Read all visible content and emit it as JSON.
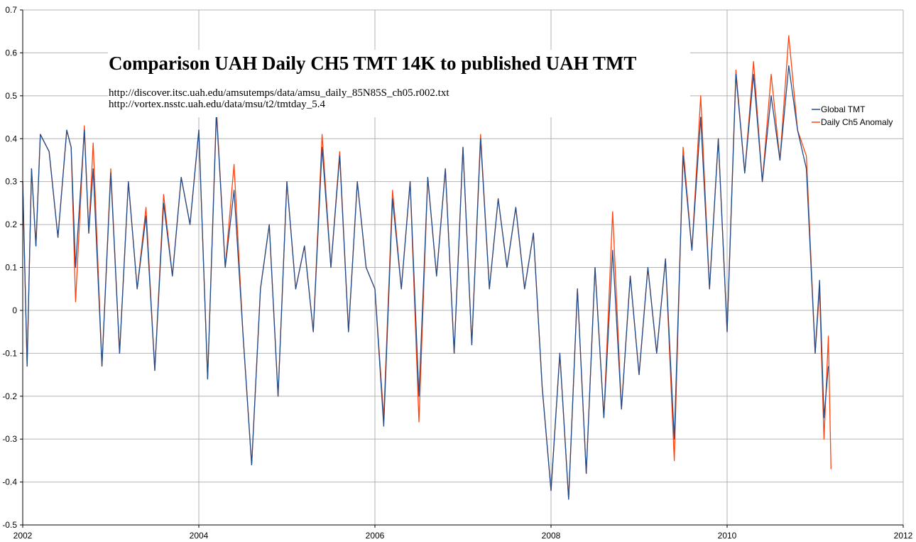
{
  "colors": {
    "global_tmt": "#1f4e8c",
    "daily_ch5": "#ff420e",
    "grid": "#b3b3b3",
    "axis": "#000000"
  },
  "chart_data": {
    "type": "line",
    "title": "Comparison UAH Daily CH5 TMT 14K to published UAH TMT",
    "sources": [
      "http://discover.itsc.uah.edu/amsutemps/data/amsu_daily_85N85S_ch05.r002.txt",
      "http://vortex.nsstc.uah.edu/data/msu/t2/tmtday_5.4"
    ],
    "xlabel": "",
    "ylabel": "",
    "xlim": [
      2002,
      2012
    ],
    "ylim": [
      -0.5,
      0.7
    ],
    "x_ticks": [
      "2002",
      "2004",
      "2006",
      "2008",
      "2010",
      "2012"
    ],
    "y_ticks": [
      "0.7",
      "0.6",
      "0.5",
      "0.4",
      "0.3",
      "0.2",
      "0.1",
      "0",
      "-0.1",
      "-0.2",
      "-0.3",
      "-0.4",
      "-0.5"
    ],
    "grid": true,
    "legend_position": "right",
    "series": [
      {
        "name": "Global TMT",
        "color": "#1f4e8c",
        "x": [
          2002.0,
          2002.05,
          2002.1,
          2002.15,
          2002.2,
          2002.3,
          2002.4,
          2002.5,
          2002.55,
          2002.6,
          2002.7,
          2002.75,
          2002.8,
          2002.9,
          2003.0,
          2003.1,
          2003.2,
          2003.3,
          2003.4,
          2003.5,
          2003.6,
          2003.7,
          2003.8,
          2003.9,
          2004.0,
          2004.1,
          2004.2,
          2004.3,
          2004.4,
          2004.5,
          2004.6,
          2004.7,
          2004.8,
          2004.9,
          2005.0,
          2005.1,
          2005.2,
          2005.3,
          2005.4,
          2005.5,
          2005.6,
          2005.7,
          2005.8,
          2005.9,
          2006.0,
          2006.1,
          2006.2,
          2006.3,
          2006.4,
          2006.5,
          2006.6,
          2006.7,
          2006.8,
          2006.9,
          2007.0,
          2007.1,
          2007.2,
          2007.3,
          2007.4,
          2007.5,
          2007.6,
          2007.7,
          2007.8,
          2007.9,
          2008.0,
          2008.1,
          2008.2,
          2008.3,
          2008.4,
          2008.5,
          2008.6,
          2008.7,
          2008.8,
          2008.9,
          2009.0,
          2009.1,
          2009.2,
          2009.3,
          2009.4,
          2009.5,
          2009.6,
          2009.7,
          2009.8,
          2009.9,
          2010.0,
          2010.1,
          2010.2,
          2010.3,
          2010.4,
          2010.5,
          2010.6,
          2010.7,
          2010.8,
          2010.9,
          2011.0,
          2011.05,
          2011.1,
          2011.15
        ],
        "values": [
          0.3,
          -0.13,
          0.33,
          0.15,
          0.41,
          0.37,
          0.17,
          0.42,
          0.38,
          0.1,
          0.42,
          0.18,
          0.33,
          -0.13,
          0.32,
          -0.1,
          0.3,
          0.05,
          0.22,
          -0.14,
          0.25,
          0.08,
          0.31,
          0.2,
          0.42,
          -0.16,
          0.46,
          0.1,
          0.28,
          -0.05,
          -0.36,
          0.05,
          0.2,
          -0.2,
          0.3,
          0.05,
          0.15,
          -0.05,
          0.38,
          0.1,
          0.36,
          -0.05,
          0.3,
          0.1,
          0.05,
          -0.27,
          0.26,
          0.05,
          0.3,
          -0.2,
          0.31,
          0.08,
          0.33,
          -0.1,
          0.38,
          -0.08,
          0.4,
          0.05,
          0.26,
          0.1,
          0.24,
          0.05,
          0.18,
          -0.18,
          -0.42,
          -0.1,
          -0.44,
          0.05,
          -0.38,
          0.1,
          -0.25,
          0.14,
          -0.23,
          0.08,
          -0.15,
          0.1,
          -0.1,
          0.12,
          -0.3,
          0.36,
          0.14,
          0.45,
          0.05,
          0.4,
          -0.05,
          0.55,
          0.32,
          0.55,
          0.3,
          0.5,
          0.35,
          0.57,
          0.42,
          0.33,
          -0.1,
          0.07,
          -0.25,
          -0.13
        ]
      },
      {
        "name": "Daily Ch5 Anomaly",
        "color": "#ff420e",
        "x": [
          2002.0,
          2002.05,
          2002.1,
          2002.15,
          2002.2,
          2002.3,
          2002.4,
          2002.5,
          2002.55,
          2002.6,
          2002.7,
          2002.75,
          2002.8,
          2002.9,
          2003.0,
          2003.1,
          2003.2,
          2003.3,
          2003.4,
          2003.5,
          2003.6,
          2003.7,
          2003.8,
          2003.9,
          2004.0,
          2004.1,
          2004.2,
          2004.3,
          2004.4,
          2004.5,
          2004.6,
          2004.7,
          2004.8,
          2004.9,
          2005.0,
          2005.1,
          2005.2,
          2005.3,
          2005.4,
          2005.5,
          2005.6,
          2005.7,
          2005.8,
          2005.9,
          2006.0,
          2006.1,
          2006.2,
          2006.3,
          2006.4,
          2006.5,
          2006.6,
          2006.7,
          2006.8,
          2006.9,
          2007.0,
          2007.1,
          2007.2,
          2007.3,
          2007.4,
          2007.5,
          2007.6,
          2007.7,
          2007.8,
          2007.9,
          2008.0,
          2008.1,
          2008.2,
          2008.3,
          2008.4,
          2008.5,
          2008.6,
          2008.7,
          2008.8,
          2008.9,
          2009.0,
          2009.1,
          2009.2,
          2009.3,
          2009.4,
          2009.5,
          2009.6,
          2009.7,
          2009.8,
          2009.9,
          2010.0,
          2010.1,
          2010.2,
          2010.3,
          2010.4,
          2010.5,
          2010.6,
          2010.7,
          2010.8,
          2010.9,
          2011.0,
          2011.05,
          2011.1,
          2011.15,
          2011.18
        ],
        "values": [
          0.3,
          -0.13,
          0.33,
          0.15,
          0.41,
          0.37,
          0.17,
          0.42,
          0.38,
          0.02,
          0.43,
          0.18,
          0.39,
          -0.13,
          0.33,
          -0.1,
          0.3,
          0.05,
          0.24,
          -0.14,
          0.27,
          0.08,
          0.31,
          0.2,
          0.42,
          -0.16,
          0.47,
          0.1,
          0.34,
          -0.05,
          -0.36,
          0.05,
          0.2,
          -0.2,
          0.3,
          0.05,
          0.15,
          -0.05,
          0.41,
          0.1,
          0.37,
          -0.05,
          0.3,
          0.1,
          0.05,
          -0.25,
          0.28,
          0.05,
          0.3,
          -0.26,
          0.31,
          0.08,
          0.33,
          -0.1,
          0.38,
          -0.08,
          0.41,
          0.05,
          0.26,
          0.1,
          0.24,
          0.05,
          0.18,
          -0.18,
          -0.42,
          -0.1,
          -0.44,
          0.05,
          -0.38,
          0.1,
          -0.25,
          0.23,
          -0.23,
          0.08,
          -0.15,
          0.1,
          -0.1,
          0.12,
          -0.35,
          0.38,
          0.14,
          0.5,
          0.05,
          0.4,
          -0.05,
          0.56,
          0.32,
          0.58,
          0.3,
          0.55,
          0.35,
          0.64,
          0.42,
          0.36,
          -0.1,
          0.05,
          -0.3,
          -0.06,
          -0.37
        ]
      }
    ]
  }
}
